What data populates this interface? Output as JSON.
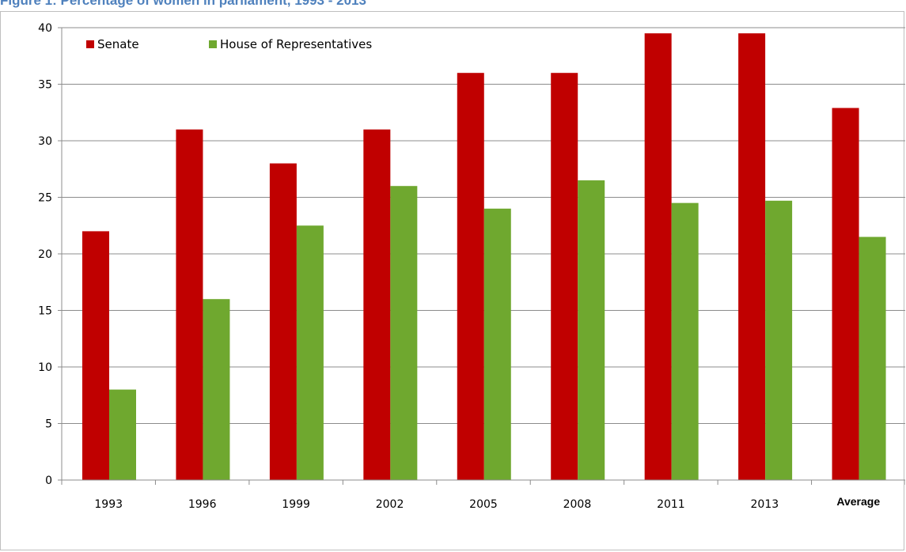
{
  "figure_title": "Figure 1: Percentage of women in parliament, 1993 - 2013",
  "chart_data": {
    "type": "bar",
    "title": "Figure 1: Percentage of women in parliament, 1993 - 2013",
    "xlabel": "",
    "ylabel": "",
    "categories": [
      "1993",
      "1996",
      "1999",
      "2002",
      "2005",
      "2008",
      "2011",
      "2013",
      "Average"
    ],
    "series": [
      {
        "name": "Senate",
        "color": "#c00000",
        "values": [
          22,
          31,
          28,
          31,
          36,
          36,
          39.5,
          39.5,
          32.9
        ]
      },
      {
        "name": "House of Representatives",
        "color": "#6fa82f",
        "values": [
          8,
          16,
          22.5,
          26,
          24,
          26.5,
          24.5,
          24.7,
          21.5
        ]
      }
    ],
    "ylim": [
      0,
      40
    ],
    "yticks": [
      "0",
      "5",
      "10",
      "15",
      "20",
      "25",
      "30",
      "35",
      "40"
    ],
    "grid": true,
    "legend_position": "top-left"
  }
}
